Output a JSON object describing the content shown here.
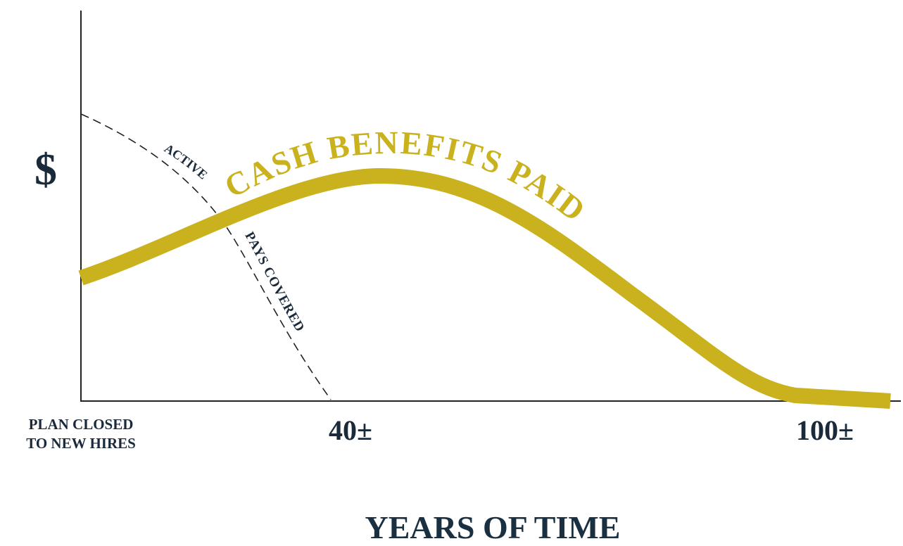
{
  "y_axis_label": "$",
  "x_axis_title": "YEARS OF TIME",
  "origin_label": [
    "PLAN CLOSED",
    "TO NEW HIRES"
  ],
  "x_marks": [
    "40±",
    "100±"
  ],
  "curve_labels": {
    "benefits": "CASH BENEFITS PAID",
    "active": [
      "ACTIVE",
      "PAYS COVERED"
    ]
  }
}
